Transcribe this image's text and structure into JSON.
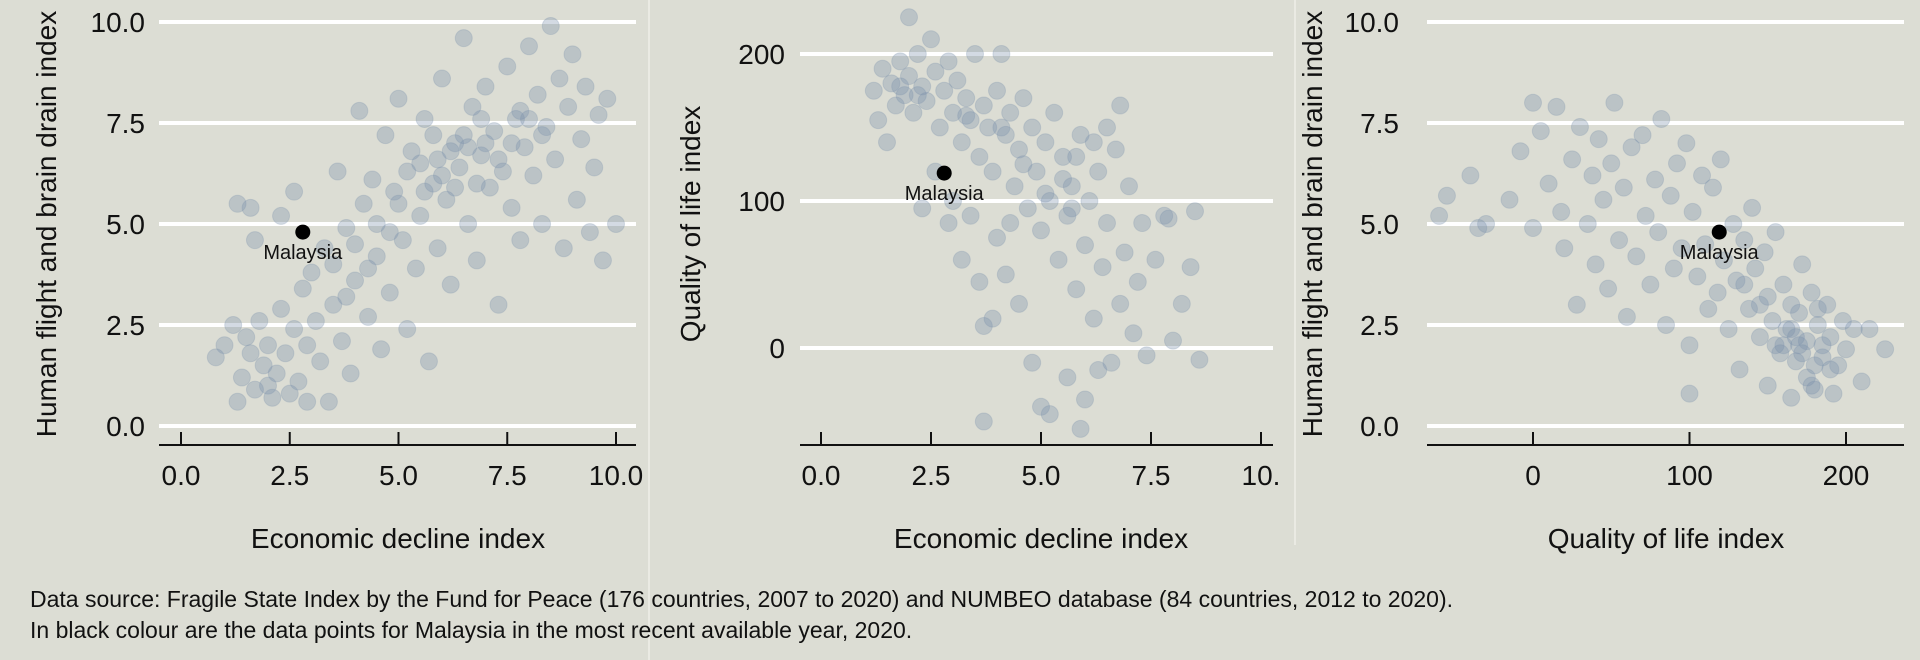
{
  "colors": {
    "background": "#dcddd4",
    "points": "#7890aa",
    "highlight": "#000000",
    "grid": "#ffffff",
    "separator": "#f2f2ee"
  },
  "caption": {
    "line1": "Data source: Fragile State Index by the Fund for Peace (176 countries, 2007 to 2020) and NUMBEO database (84 countries, 2012 to 2020).",
    "line2": "In black colour are the data points for Malaysia in the most recent available year, 2020."
  },
  "chart_data": [
    {
      "type": "scatter",
      "xlabel": "Economic decline index",
      "ylabel": "Human flight and brain drain index",
      "xlim": [
        0,
        10
      ],
      "ylim": [
        0,
        10
      ],
      "xticks": [
        "0.0",
        "2.5",
        "5.0",
        "7.5",
        "10.0"
      ],
      "xtick_values": [
        0,
        2.5,
        5,
        7.5,
        10
      ],
      "yticks": [
        "0.0",
        "2.5",
        "5.0",
        "7.5",
        "10.0"
      ],
      "ytick_values": [
        0,
        2.5,
        5,
        7.5,
        10
      ],
      "grid": "horizontal",
      "highlight": {
        "label": "Malaysia",
        "x": 2.8,
        "y": 4.8
      },
      "points": [
        [
          0.8,
          1.7
        ],
        [
          1.0,
          2.0
        ],
        [
          1.2,
          2.5
        ],
        [
          1.3,
          0.6
        ],
        [
          1.4,
          1.2
        ],
        [
          1.5,
          2.2
        ],
        [
          1.6,
          1.8
        ],
        [
          1.7,
          0.9
        ],
        [
          1.8,
          2.6
        ],
        [
          1.9,
          1.5
        ],
        [
          2.0,
          2.0
        ],
        [
          2.1,
          0.7
        ],
        [
          2.2,
          1.3
        ],
        [
          2.3,
          2.9
        ],
        [
          2.4,
          1.8
        ],
        [
          2.5,
          0.8
        ],
        [
          2.6,
          2.4
        ],
        [
          2.7,
          1.1
        ],
        [
          2.8,
          3.4
        ],
        [
          2.9,
          2.0
        ],
        [
          1.3,
          5.5
        ],
        [
          1.6,
          5.4
        ],
        [
          2.3,
          5.2
        ],
        [
          1.7,
          4.6
        ],
        [
          2.6,
          5.8
        ],
        [
          3.0,
          3.8
        ],
        [
          3.1,
          2.6
        ],
        [
          3.2,
          1.6
        ],
        [
          3.3,
          4.4
        ],
        [
          3.4,
          0.6
        ],
        [
          3.5,
          3.0
        ],
        [
          3.6,
          6.3
        ],
        [
          3.7,
          2.1
        ],
        [
          3.8,
          4.9
        ],
        [
          3.9,
          1.3
        ],
        [
          4.0,
          3.6
        ],
        [
          4.1,
          7.8
        ],
        [
          4.2,
          5.5
        ],
        [
          4.3,
          2.7
        ],
        [
          4.4,
          6.1
        ],
        [
          4.5,
          4.2
        ],
        [
          4.6,
          1.9
        ],
        [
          4.7,
          7.2
        ],
        [
          4.8,
          3.3
        ],
        [
          4.9,
          5.8
        ],
        [
          5.0,
          8.1
        ],
        [
          5.1,
          4.6
        ],
        [
          5.2,
          2.4
        ],
        [
          5.3,
          6.8
        ],
        [
          5.4,
          3.9
        ],
        [
          5.5,
          5.2
        ],
        [
          5.6,
          7.6
        ],
        [
          5.7,
          1.6
        ],
        [
          5.8,
          6.0
        ],
        [
          5.9,
          4.4
        ],
        [
          6.0,
          8.6
        ],
        [
          6.1,
          5.6
        ],
        [
          6.2,
          3.5
        ],
        [
          6.3,
          7.0
        ],
        [
          6.4,
          6.4
        ],
        [
          6.5,
          9.6
        ],
        [
          6.6,
          5.0
        ],
        [
          6.7,
          7.9
        ],
        [
          6.8,
          4.1
        ],
        [
          6.9,
          6.7
        ],
        [
          7.0,
          8.4
        ],
        [
          7.1,
          5.9
        ],
        [
          7.2,
          7.3
        ],
        [
          7.3,
          3.0
        ],
        [
          7.4,
          6.3
        ],
        [
          7.5,
          8.9
        ],
        [
          7.6,
          5.4
        ],
        [
          7.7,
          7.6
        ],
        [
          7.8,
          4.6
        ],
        [
          7.9,
          6.9
        ],
        [
          8.0,
          9.4
        ],
        [
          8.1,
          6.2
        ],
        [
          8.2,
          8.2
        ],
        [
          8.3,
          5.0
        ],
        [
          8.4,
          7.4
        ],
        [
          8.5,
          9.9
        ],
        [
          8.6,
          6.6
        ],
        [
          8.7,
          8.6
        ],
        [
          8.8,
          4.4
        ],
        [
          8.9,
          7.9
        ],
        [
          9.0,
          9.2
        ],
        [
          9.1,
          5.6
        ],
        [
          9.2,
          7.1
        ],
        [
          9.3,
          8.4
        ],
        [
          9.4,
          4.8
        ],
        [
          9.5,
          6.4
        ],
        [
          9.6,
          7.7
        ],
        [
          9.7,
          4.1
        ],
        [
          9.8,
          8.1
        ],
        [
          10.0,
          5.0
        ],
        [
          5.5,
          6.5
        ],
        [
          6.0,
          6.2
        ],
        [
          6.5,
          7.2
        ],
        [
          7.0,
          7.0
        ],
        [
          4.5,
          5.0
        ],
        [
          5.0,
          5.5
        ],
        [
          3.5,
          4.0
        ],
        [
          4.0,
          4.5
        ],
        [
          6.2,
          6.8
        ],
        [
          7.8,
          7.8
        ],
        [
          8.3,
          7.2
        ],
        [
          6.8,
          6.0
        ],
        [
          5.2,
          6.3
        ],
        [
          2.9,
          0.6
        ],
        [
          2.0,
          1.0
        ],
        [
          5.8,
          7.2
        ],
        [
          6.3,
          5.9
        ],
        [
          7.3,
          6.6
        ],
        [
          4.8,
          4.8
        ],
        [
          5.6,
          5.8
        ],
        [
          6.9,
          7.6
        ],
        [
          7.6,
          7.0
        ],
        [
          3.8,
          3.2
        ],
        [
          4.3,
          3.9
        ],
        [
          8.0,
          7.6
        ],
        [
          6.6,
          6.9
        ],
        [
          5.9,
          6.6
        ]
      ]
    },
    {
      "type": "scatter",
      "xlabel": "Economic decline index",
      "ylabel": "Quality of life index",
      "xlim": [
        0,
        10
      ],
      "ylim": [
        -55,
        225
      ],
      "xticks": [
        "0.0",
        "2.5",
        "5.0",
        "7.5",
        "10."
      ],
      "xtick_values": [
        0,
        2.5,
        5,
        7.5,
        10
      ],
      "yticks": [
        "0",
        "100",
        "200"
      ],
      "ytick_values": [
        0,
        100,
        200
      ],
      "grid": "horizontal",
      "highlight": {
        "label": "Malaysia",
        "x": 2.8,
        "y": 119
      },
      "points": [
        [
          1.2,
          175
        ],
        [
          1.3,
          155
        ],
        [
          1.4,
          190
        ],
        [
          1.5,
          140
        ],
        [
          1.6,
          180
        ],
        [
          1.7,
          165
        ],
        [
          1.8,
          195
        ],
        [
          1.9,
          172
        ],
        [
          2.0,
          185
        ],
        [
          2.0,
          225
        ],
        [
          2.1,
          160
        ],
        [
          2.2,
          200
        ],
        [
          2.3,
          178
        ],
        [
          2.4,
          168
        ],
        [
          2.5,
          210
        ],
        [
          2.6,
          188
        ],
        [
          2.7,
          150
        ],
        [
          2.8,
          175
        ],
        [
          2.9,
          195
        ],
        [
          3.0,
          160
        ],
        [
          3.1,
          182
        ],
        [
          3.2,
          140
        ],
        [
          3.3,
          170
        ],
        [
          3.4,
          155
        ],
        [
          3.5,
          200
        ],
        [
          3.6,
          130
        ],
        [
          3.7,
          165
        ],
        [
          3.8,
          150
        ],
        [
          3.9,
          120
        ],
        [
          4.0,
          175
        ],
        [
          4.1,
          200
        ],
        [
          4.2,
          145
        ],
        [
          4.3,
          160
        ],
        [
          4.4,
          110
        ],
        [
          4.5,
          135
        ],
        [
          4.6,
          170
        ],
        [
          4.7,
          95
        ],
        [
          4.8,
          150
        ],
        [
          4.9,
          120
        ],
        [
          5.0,
          80
        ],
        [
          5.1,
          140
        ],
        [
          5.2,
          100
        ],
        [
          5.3,
          160
        ],
        [
          5.4,
          60
        ],
        [
          5.5,
          130
        ],
        [
          5.6,
          90
        ],
        [
          5.7,
          110
        ],
        [
          5.8,
          40
        ],
        [
          5.9,
          145
        ],
        [
          6.0,
          70
        ],
        [
          6.1,
          100
        ],
        [
          6.2,
          20
        ],
        [
          6.3,
          120
        ],
        [
          6.4,
          55
        ],
        [
          6.5,
          85
        ],
        [
          6.6,
          -10
        ],
        [
          6.7,
          135
        ],
        [
          6.8,
          30
        ],
        [
          6.9,
          65
        ],
        [
          7.0,
          110
        ],
        [
          7.1,
          10
        ],
        [
          7.2,
          45
        ],
        [
          7.3,
          85
        ],
        [
          7.4,
          -5
        ],
        [
          7.6,
          60
        ],
        [
          7.8,
          90
        ],
        [
          8.0,
          5
        ],
        [
          8.2,
          30
        ],
        [
          8.5,
          93
        ],
        [
          8.4,
          55
        ],
        [
          8.6,
          -8
        ],
        [
          7.9,
          88
        ],
        [
          3.2,
          60
        ],
        [
          3.6,
          45
        ],
        [
          3.7,
          15
        ],
        [
          3.7,
          -50
        ],
        [
          3.9,
          20
        ],
        [
          4.2,
          50
        ],
        [
          4.5,
          30
        ],
        [
          4.8,
          -10
        ],
        [
          5.0,
          -40
        ],
        [
          5.2,
          -45
        ],
        [
          5.6,
          -20
        ],
        [
          5.9,
          -55
        ],
        [
          6.0,
          -35
        ],
        [
          6.3,
          -15
        ],
        [
          3.0,
          100
        ],
        [
          2.3,
          95
        ],
        [
          2.6,
          120
        ],
        [
          3.4,
          90
        ],
        [
          4.0,
          75
        ],
        [
          4.3,
          85
        ],
        [
          5.5,
          115
        ],
        [
          5.8,
          130
        ],
        [
          6.2,
          140
        ],
        [
          6.5,
          150
        ],
        [
          6.8,
          165
        ],
        [
          2.9,
          85
        ],
        [
          1.8,
          178
        ],
        [
          2.2,
          172
        ],
        [
          3.3,
          158
        ],
        [
          4.1,
          150
        ],
        [
          4.6,
          125
        ],
        [
          5.1,
          105
        ],
        [
          5.7,
          95
        ]
      ]
    },
    {
      "type": "scatter",
      "xlabel": "Quality of life index",
      "ylabel": "Human flight and brain drain index",
      "xlim": [
        -70,
        240
      ],
      "ylim": [
        0,
        10
      ],
      "xticks": [
        "0",
        "100",
        "200"
      ],
      "xtick_values": [
        0,
        100,
        200
      ],
      "yticks": [
        "0.0",
        "2.5",
        "5.0",
        "7.5",
        "10.0"
      ],
      "ytick_values": [
        0,
        2.5,
        5,
        7.5,
        10
      ],
      "grid": "horizontal",
      "highlight": {
        "label": "Malaysia",
        "x": 119,
        "y": 4.8
      },
      "points": [
        [
          -60,
          5.2
        ],
        [
          -55,
          5.7
        ],
        [
          -40,
          6.2
        ],
        [
          -30,
          5.0
        ],
        [
          -15,
          5.6
        ],
        [
          -8,
          6.8
        ],
        [
          0,
          8.0
        ],
        [
          0,
          4.9
        ],
        [
          5,
          7.3
        ],
        [
          10,
          6.0
        ],
        [
          15,
          7.9
        ],
        [
          18,
          5.3
        ],
        [
          20,
          4.4
        ],
        [
          25,
          6.6
        ],
        [
          28,
          3.0
        ],
        [
          30,
          7.4
        ],
        [
          35,
          5.0
        ],
        [
          38,
          6.2
        ],
        [
          40,
          4.0
        ],
        [
          42,
          7.1
        ],
        [
          45,
          5.6
        ],
        [
          48,
          3.4
        ],
        [
          50,
          6.5
        ],
        [
          52,
          8.0
        ],
        [
          55,
          4.6
        ],
        [
          58,
          5.9
        ],
        [
          60,
          2.7
        ],
        [
          63,
          6.9
        ],
        [
          66,
          4.2
        ],
        [
          70,
          7.2
        ],
        [
          72,
          5.2
        ],
        [
          75,
          3.5
        ],
        [
          78,
          6.1
        ],
        [
          80,
          4.8
        ],
        [
          82,
          7.6
        ],
        [
          85,
          2.5
        ],
        [
          88,
          5.7
        ],
        [
          90,
          3.9
        ],
        [
          92,
          6.5
        ],
        [
          95,
          4.4
        ],
        [
          98,
          7.0
        ],
        [
          100,
          2.0
        ],
        [
          102,
          5.3
        ],
        [
          105,
          3.7
        ],
        [
          108,
          6.2
        ],
        [
          110,
          4.5
        ],
        [
          112,
          2.9
        ],
        [
          115,
          5.9
        ],
        [
          118,
          3.3
        ],
        [
          120,
          6.6
        ],
        [
          122,
          4.1
        ],
        [
          125,
          2.4
        ],
        [
          128,
          5.0
        ],
        [
          130,
          3.6
        ],
        [
          132,
          1.4
        ],
        [
          135,
          4.6
        ],
        [
          138,
          2.9
        ],
        [
          140,
          5.4
        ],
        [
          142,
          3.9
        ],
        [
          145,
          2.2
        ],
        [
          148,
          4.3
        ],
        [
          150,
          1.0
        ],
        [
          150,
          3.2
        ],
        [
          153,
          2.6
        ],
        [
          155,
          4.8
        ],
        [
          158,
          1.8
        ],
        [
          160,
          3.5
        ],
        [
          162,
          2.4
        ],
        [
          165,
          0.7
        ],
        [
          165,
          3.0
        ],
        [
          168,
          1.6
        ],
        [
          170,
          2.8
        ],
        [
          172,
          4.0
        ],
        [
          175,
          2.1
        ],
        [
          175,
          1.2
        ],
        [
          178,
          3.3
        ],
        [
          180,
          0.9
        ],
        [
          182,
          2.5
        ],
        [
          185,
          1.7
        ],
        [
          188,
          3.0
        ],
        [
          190,
          2.2
        ],
        [
          192,
          0.8
        ],
        [
          195,
          1.5
        ],
        [
          198,
          2.6
        ],
        [
          200,
          1.9
        ],
        [
          205,
          2.4
        ],
        [
          210,
          1.1
        ],
        [
          215,
          2.4
        ],
        [
          225,
          1.9
        ],
        [
          170,
          2.0
        ],
        [
          160,
          2.0
        ],
        [
          185,
          2.0
        ],
        [
          180,
          1.5
        ],
        [
          155,
          2.0
        ],
        [
          145,
          3.0
        ],
        [
          135,
          3.5
        ],
        [
          165,
          2.4
        ],
        [
          190,
          1.4
        ],
        [
          100,
          0.8
        ],
        [
          -35,
          4.9
        ],
        [
          172,
          1.8
        ],
        [
          182,
          2.9
        ],
        [
          168,
          2.2
        ],
        [
          178,
          1.0
        ]
      ]
    }
  ]
}
